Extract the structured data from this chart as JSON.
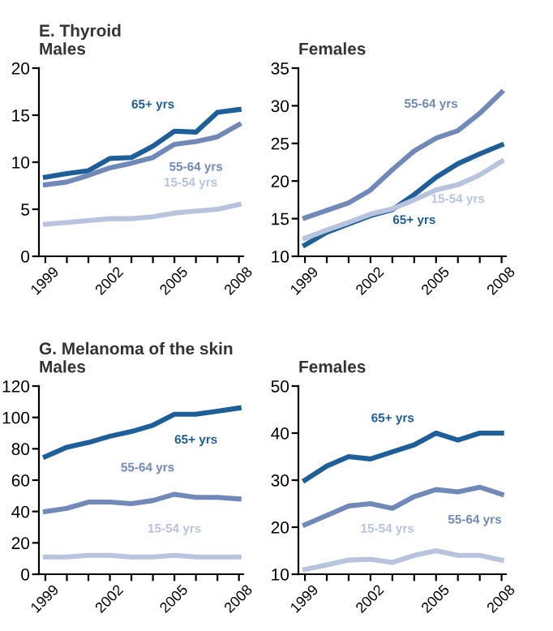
{
  "chart_data": [
    {
      "type": "line",
      "title": "E. Thyroid",
      "subtitle": "Males",
      "x": [
        1999,
        2000,
        2001,
        2002,
        2003,
        2004,
        2005,
        2006,
        2007,
        2008
      ],
      "xlim": [
        1998.7,
        2008.2
      ],
      "ylim": [
        0,
        20
      ],
      "yticks": [
        0,
        5,
        10,
        15,
        20
      ],
      "xticks": [
        1999,
        {
          "value": 2000,
          "label": null
        },
        {
          "value": 2001,
          "label": null
        },
        2002,
        {
          "value": 2003,
          "label": null
        },
        {
          "value": 2004,
          "label": null
        },
        2005,
        {
          "value": 2006,
          "label": null
        },
        {
          "value": 2007,
          "label": null
        },
        2008
      ],
      "grid": false,
      "legend": false,
      "marker": "none",
      "line_style": "solid",
      "series": [
        {
          "name": "65+ yrs",
          "color": "#1f5f99",
          "values": [
            8.4,
            8.8,
            9.1,
            10.4,
            10.5,
            11.7,
            13.3,
            13.2,
            15.3,
            15.6
          ]
        },
        {
          "name": "55-64 yrs",
          "color": "#7089b8",
          "values": [
            7.6,
            7.9,
            8.6,
            9.4,
            9.9,
            10.5,
            11.9,
            12.2,
            12.7,
            14.0
          ]
        },
        {
          "name": "15-54 yrs",
          "color": "#b8c4de",
          "values": [
            3.4,
            3.6,
            3.8,
            4.0,
            4.0,
            4.2,
            4.6,
            4.8,
            5.0,
            5.5
          ]
        }
      ]
    },
    {
      "type": "line",
      "title": "Females",
      "x": [
        1999,
        2000,
        2001,
        2002,
        2003,
        2004,
        2005,
        2006,
        2007,
        2008
      ],
      "xlim": [
        1998.7,
        2008.2
      ],
      "ylim": [
        10,
        35
      ],
      "yticks": [
        10,
        15,
        20,
        25,
        30,
        35
      ],
      "xticks": [
        1999,
        {
          "value": 2000,
          "label": null
        },
        {
          "value": 2001,
          "label": null
        },
        2002,
        {
          "value": 2003,
          "label": null
        },
        {
          "value": 2004,
          "label": null
        },
        2005,
        {
          "value": 2006,
          "label": null
        },
        {
          "value": 2007,
          "label": null
        },
        2008
      ],
      "grid": false,
      "legend": false,
      "marker": "none",
      "line_style": "solid",
      "series": [
        {
          "name": "55-64 yrs",
          "color": "#7089b8",
          "values": [
            15.1,
            16.1,
            17.1,
            18.8,
            21.5,
            24.0,
            25.7,
            26.7,
            29.0,
            31.8
          ]
        },
        {
          "name": "65+ yrs",
          "color": "#1f5f99",
          "values": [
            11.5,
            13.2,
            14.3,
            15.4,
            16.2,
            18.2,
            20.5,
            22.3,
            23.6,
            24.8
          ]
        },
        {
          "name": "15-54 yrs",
          "color": "#b8c4de",
          "values": [
            12.4,
            13.5,
            14.5,
            15.6,
            16.3,
            17.5,
            18.8,
            19.5,
            20.8,
            22.6
          ]
        }
      ]
    },
    {
      "type": "line",
      "title": "G. Melanoma of the skin",
      "subtitle": "Males",
      "x": [
        1999,
        2000,
        2001,
        2002,
        2003,
        2004,
        2005,
        2006,
        2007,
        2008
      ],
      "xlim": [
        1998.7,
        2008.2
      ],
      "ylim": [
        0,
        120
      ],
      "yticks": [
        0,
        20,
        40,
        60,
        80,
        100,
        120
      ],
      "xticks": [
        1999,
        {
          "value": 2000,
          "label": null
        },
        {
          "value": 2001,
          "label": null
        },
        2002,
        {
          "value": 2003,
          "label": null
        },
        {
          "value": 2004,
          "label": null
        },
        2005,
        {
          "value": 2006,
          "label": null
        },
        {
          "value": 2007,
          "label": null
        },
        2008
      ],
      "grid": false,
      "legend": false,
      "marker": "none",
      "line_style": "solid",
      "series": [
        {
          "name": "65+ yrs",
          "color": "#1f5f99",
          "values": [
            75,
            81,
            84,
            88,
            91,
            95,
            102,
            102,
            104,
            106
          ]
        },
        {
          "name": "55-64 yrs",
          "color": "#7089b8",
          "values": [
            40,
            42,
            46,
            46,
            45,
            47,
            51,
            49,
            49,
            48
          ]
        },
        {
          "name": "15-54 yrs",
          "color": "#b8c4de",
          "values": [
            11,
            11,
            12,
            12,
            11,
            11,
            12,
            11,
            11,
            11
          ]
        }
      ]
    },
    {
      "type": "line",
      "title": "Females",
      "x": [
        1999,
        2000,
        2001,
        2002,
        2003,
        2004,
        2005,
        2006,
        2007,
        2008
      ],
      "xlim": [
        1998.7,
        2008.2
      ],
      "ylim": [
        10,
        50
      ],
      "yticks": [
        10,
        20,
        30,
        40,
        50
      ],
      "xticks": [
        1999,
        {
          "value": 2000,
          "label": null
        },
        {
          "value": 2001,
          "label": null
        },
        2002,
        {
          "value": 2003,
          "label": null
        },
        {
          "value": 2004,
          "label": null
        },
        2005,
        {
          "value": 2006,
          "label": null
        },
        {
          "value": 2007,
          "label": null
        },
        2008
      ],
      "grid": false,
      "legend": false,
      "marker": "none",
      "line_style": "solid",
      "series": [
        {
          "name": "65+ yrs",
          "color": "#1f5f99",
          "values": [
            30,
            33,
            35,
            34.5,
            36,
            37.5,
            40,
            38.5,
            40,
            40
          ]
        },
        {
          "name": "55-64 yrs",
          "color": "#7089b8",
          "values": [
            20.5,
            22.5,
            24.5,
            25,
            24,
            26.5,
            28,
            27.5,
            28.5,
            27
          ]
        },
        {
          "name": "15-54 yrs",
          "color": "#b8c4de",
          "values": [
            11,
            12,
            13,
            13.2,
            12.5,
            14,
            15,
            14,
            14,
            13
          ]
        }
      ]
    }
  ]
}
